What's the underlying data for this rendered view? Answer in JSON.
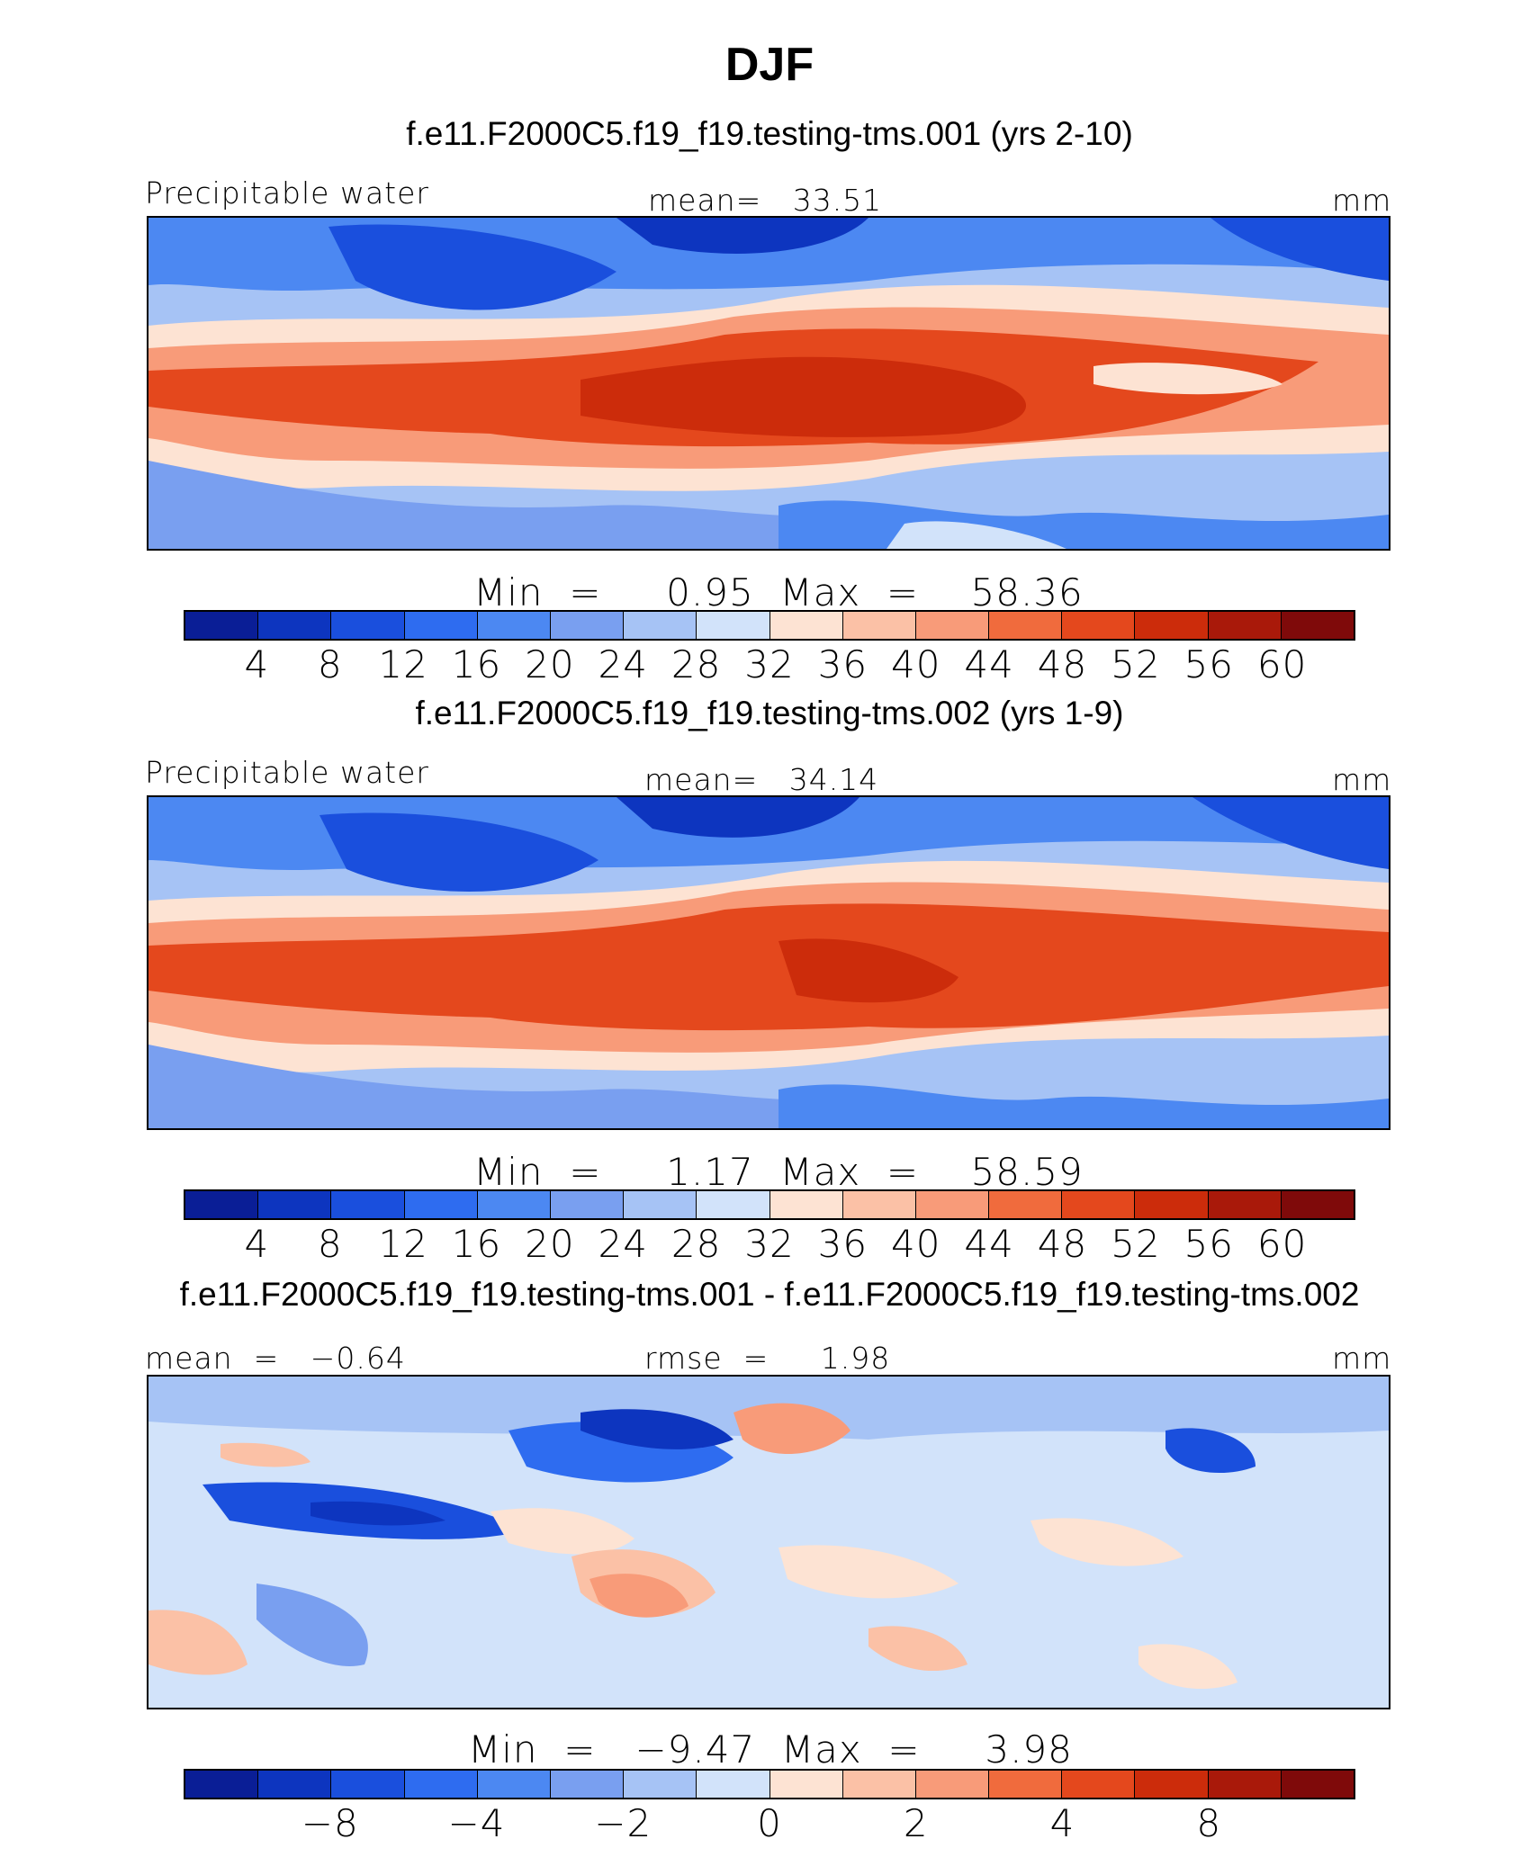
{
  "season": "DJF",
  "palette": [
    "#0a1e96",
    "#0d35bf",
    "#1a4fdd",
    "#2e6cf0",
    "#4c88f2",
    "#799ff0",
    "#a6c3f5",
    "#d2e3fa",
    "#fde3d3",
    "#fbc1a6",
    "#f89b79",
    "#f06b3d",
    "#e4481d",
    "#cc2c0b",
    "#a9190a",
    "#7f0a0a"
  ],
  "panels": [
    {
      "subtitle": "f.e11.F2000C5.f19_f19.testing-tms.001 (yrs 2-10)",
      "left_label": "Precipitable water",
      "center_label": "mean=   33.51",
      "right_label": "mm",
      "minmax": "Min  =     0.95  Max  =    58.36",
      "ticks": [
        "4",
        "8",
        "12",
        "16",
        "20",
        "24",
        "28",
        "32",
        "36",
        "40",
        "44",
        "48",
        "52",
        "56",
        "60"
      ]
    },
    {
      "subtitle": "f.e11.F2000C5.f19_f19.testing-tms.002 (yrs 1-9)",
      "left_label": "Precipitable water",
      "center_label": "mean=   34.14",
      "right_label": "mm",
      "minmax": "Min  =     1.17  Max  =    58.59",
      "ticks": [
        "4",
        "8",
        "12",
        "16",
        "20",
        "24",
        "28",
        "32",
        "36",
        "40",
        "44",
        "48",
        "52",
        "56",
        "60"
      ]
    },
    {
      "subtitle": "f.e11.F2000C5.f19_f19.testing-tms.001 - f.e11.F2000C5.f19_f19.testing-tms.002",
      "left_label": "mean  =   −0.64",
      "center_label": "rmse  =     1.98",
      "right_label": "mm",
      "minmax": "Min  =   −9.47  Max  =     3.98",
      "ticks": [
        "",
        "−8",
        "",
        "−4",
        "",
        "−2",
        "",
        "0",
        "",
        "2",
        "",
        "4",
        "",
        "8",
        ""
      ]
    }
  ],
  "chart_data": [
    {
      "type": "heatmap",
      "title": "f.e11.F2000C5.f19_f19.testing-tms.001 (yrs 2-10)",
      "variable": "Precipitable water",
      "units": "mm",
      "mean": 33.51,
      "min": 0.95,
      "max": 58.36,
      "contour_levels": [
        4,
        8,
        12,
        16,
        20,
        24,
        28,
        32,
        36,
        40,
        44,
        48,
        52,
        56,
        60
      ]
    },
    {
      "type": "heatmap",
      "title": "f.e11.F2000C5.f19_f19.testing-tms.002 (yrs 1-9)",
      "variable": "Precipitable water",
      "units": "mm",
      "mean": 34.14,
      "min": 1.17,
      "max": 58.59,
      "contour_levels": [
        4,
        8,
        12,
        16,
        20,
        24,
        28,
        32,
        36,
        40,
        44,
        48,
        52,
        56,
        60
      ]
    },
    {
      "type": "heatmap",
      "title": "f.e11.F2000C5.f19_f19.testing-tms.001 - f.e11.F2000C5.f19_f19.testing-tms.002",
      "units": "mm",
      "mean": -0.64,
      "rmse": 1.98,
      "min": -9.47,
      "max": 3.98,
      "contour_levels": [
        -10,
        -8,
        -6,
        -4,
        -3,
        -2,
        -1,
        0,
        1,
        2,
        3,
        4,
        6,
        8,
        10
      ]
    }
  ]
}
